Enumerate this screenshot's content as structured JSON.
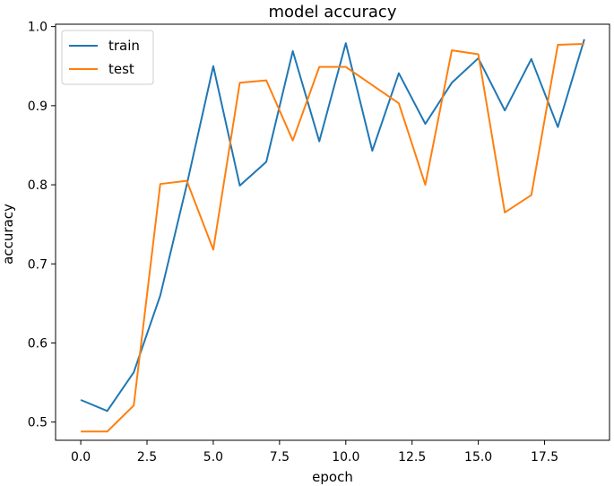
{
  "chart_data": {
    "type": "line",
    "title": "model accuracy",
    "xlabel": "epoch",
    "ylabel": "accuracy",
    "xlim": [
      -0.95,
      19.95
    ],
    "ylim": [
      0.477,
      1.003
    ],
    "xticks": [
      0,
      2.5,
      5,
      7.5,
      10,
      12.5,
      15,
      17.5
    ],
    "xtick_labels": [
      "0.0",
      "2.5",
      "5.0",
      "7.5",
      "10.0",
      "12.5",
      "15.0",
      "17.5"
    ],
    "yticks": [
      0.5,
      0.6,
      0.7,
      0.8,
      0.9,
      1.0
    ],
    "ytick_labels": [
      "0.5",
      "0.6",
      "0.7",
      "0.8",
      "0.9",
      "1.0"
    ],
    "grid": false,
    "legend_position": "top-left",
    "x": [
      0,
      1,
      2,
      3,
      4,
      5,
      6,
      7,
      8,
      9,
      10,
      11,
      12,
      13,
      14,
      15,
      16,
      17,
      18,
      19
    ],
    "series": [
      {
        "name": "train",
        "color": "#1f77b4",
        "values": [
          0.528,
          0.514,
          0.563,
          0.66,
          0.8,
          0.95,
          0.799,
          0.829,
          0.969,
          0.855,
          0.979,
          0.843,
          0.941,
          0.877,
          0.929,
          0.96,
          0.894,
          0.959,
          0.873,
          0.984
        ]
      },
      {
        "name": "test",
        "color": "#ff7f0e",
        "values": [
          0.488,
          0.488,
          0.521,
          0.801,
          0.805,
          0.718,
          0.929,
          0.932,
          0.856,
          0.949,
          0.949,
          0.926,
          0.903,
          0.8,
          0.97,
          0.965,
          0.765,
          0.787,
          0.977,
          0.978
        ]
      }
    ]
  }
}
